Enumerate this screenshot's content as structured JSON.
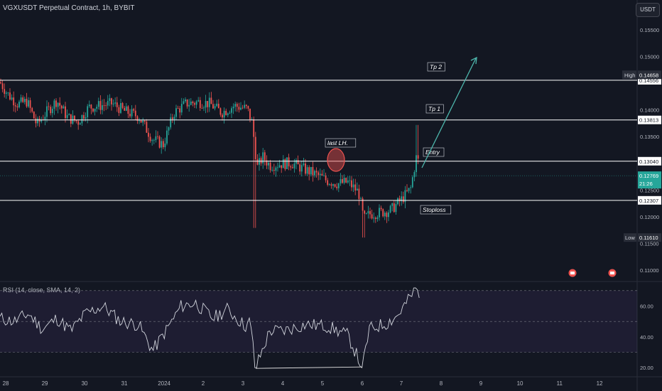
{
  "header": {
    "title": "VGXUSDT Perpetual Contract, 1h, BYBIT",
    "currency": "USDT"
  },
  "price_axis": {
    "ticks": [
      "0.15500",
      "0.15000",
      "0.14000",
      "0.13500",
      "0.12500",
      "0.12000",
      "0.11500",
      "0.11000"
    ],
    "high_label": "High",
    "high_value": "0.14658",
    "low_label": "Low",
    "low_value": "0.11610",
    "current_price": "0.12769",
    "countdown": "21:26",
    "level_values": [
      "0.14556",
      "0.13813",
      "0.13040",
      "0.12307"
    ]
  },
  "annotations": {
    "tp2": "Tp 2",
    "tp1": "Tp 1",
    "entry": "Entry",
    "stoploss": "Stoploss",
    "last_lh": "last LH."
  },
  "rsi": {
    "header": "RSI (14, close, SMA, 14, 2)",
    "ticks": [
      "60.00",
      "40.00",
      "20.00"
    ]
  },
  "time_axis": {
    "labels": [
      "28",
      "29",
      "30",
      "31",
      "2024",
      "2",
      "3",
      "4",
      "5",
      "6",
      "7",
      "8",
      "9",
      "10",
      "11",
      "12"
    ]
  },
  "colors": {
    "background": "#131722",
    "up": "#26a69a",
    "down": "#ef5350",
    "level_line": "#ffffff",
    "arrow": "#4db6ac",
    "rsi_band": "#7e57c2"
  },
  "chart_data": [
    {
      "type": "candlestick",
      "title": "VGXUSDT Perpetual Contract, 1h, BYBIT",
      "ylim": [
        0.108,
        0.157
      ],
      "levels": [
        {
          "name": "Tp 2",
          "value": 0.14556
        },
        {
          "name": "Tp 1",
          "value": 0.13813
        },
        {
          "name": "Entry",
          "value": 0.1304
        },
        {
          "name": "Stoploss",
          "value": 0.12307
        }
      ],
      "high": 0.14658,
      "low": 0.1161,
      "last": 0.12769,
      "close_path": [
        [
          0,
          0.1452
        ],
        [
          12,
          0.1428
        ],
        [
          25,
          0.1411
        ],
        [
          38,
          0.1416
        ],
        [
          52,
          0.1372
        ],
        [
          65,
          0.1395
        ],
        [
          80,
          0.1418
        ],
        [
          95,
          0.1386
        ],
        [
          110,
          0.1378
        ],
        [
          125,
          0.1405
        ],
        [
          140,
          0.1408
        ],
        [
          158,
          0.1412
        ],
        [
          175,
          0.1398
        ],
        [
          195,
          0.1388
        ],
        [
          215,
          0.1345
        ],
        [
          230,
          0.1335
        ],
        [
          245,
          0.1395
        ],
        [
          262,
          0.1412
        ],
        [
          280,
          0.1415
        ],
        [
          295,
          0.1412
        ],
        [
          312,
          0.1395
        ],
        [
          330,
          0.1408
        ],
        [
          348,
          0.1402
        ],
        [
          355,
          0.1376
        ],
        [
          362,
          0.1292
        ],
        [
          370,
          0.1312
        ],
        [
          380,
          0.1296
        ],
        [
          395,
          0.1299
        ],
        [
          410,
          0.1301
        ],
        [
          428,
          0.1289
        ],
        [
          445,
          0.1279
        ],
        [
          460,
          0.1268
        ],
        [
          475,
          0.1262
        ],
        [
          490,
          0.1265
        ],
        [
          505,
          0.1245
        ],
        [
          512,
          0.1195
        ],
        [
          520,
          0.1205
        ],
        [
          535,
          0.1208
        ],
        [
          550,
          0.1212
        ],
        [
          565,
          0.1232
        ],
        [
          578,
          0.1252
        ],
        [
          587,
          0.1318
        ],
        [
          592,
          0.1276
        ]
      ]
    },
    {
      "type": "line",
      "title": "RSI (14, close, SMA, 14, 2)",
      "ylim": [
        15,
        75
      ],
      "bands": [
        30,
        50,
        70
      ],
      "path": [
        [
          0,
          52
        ],
        [
          20,
          50
        ],
        [
          40,
          55
        ],
        [
          60,
          45
        ],
        [
          80,
          52
        ],
        [
          100,
          44
        ],
        [
          120,
          55
        ],
        [
          145,
          60
        ],
        [
          170,
          50
        ],
        [
          195,
          48
        ],
        [
          215,
          31
        ],
        [
          235,
          45
        ],
        [
          255,
          60
        ],
        [
          275,
          62
        ],
        [
          300,
          52
        ],
        [
          320,
          58
        ],
        [
          345,
          47
        ],
        [
          352,
          50
        ],
        [
          360,
          20
        ],
        [
          380,
          44
        ],
        [
          400,
          44
        ],
        [
          430,
          48
        ],
        [
          460,
          47
        ],
        [
          490,
          41
        ],
        [
          510,
          20
        ],
        [
          520,
          45
        ],
        [
          545,
          49
        ],
        [
          560,
          54
        ],
        [
          575,
          64
        ],
        [
          587,
          72
        ],
        [
          592,
          59
        ]
      ]
    }
  ]
}
